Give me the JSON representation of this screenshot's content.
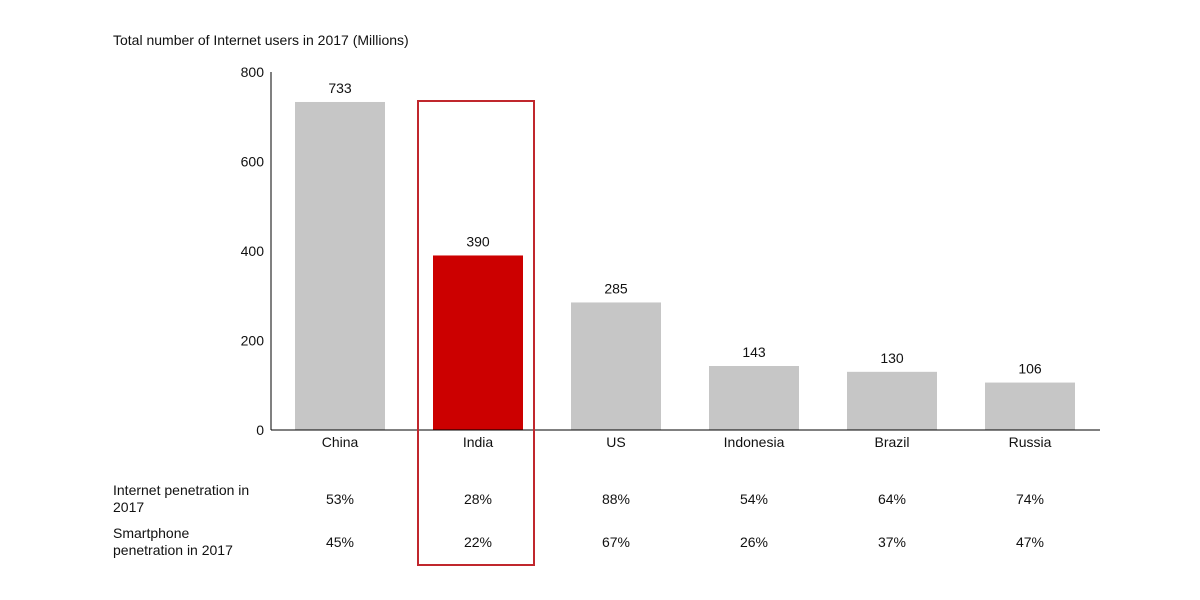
{
  "chart_data": {
    "type": "bar",
    "title": "Total number of Internet users in 2017 (Millions)",
    "categories": [
      "China",
      "India",
      "US",
      "Indonesia",
      "Brazil",
      "Russia"
    ],
    "values": [
      733,
      390,
      285,
      143,
      130,
      106
    ],
    "value_labels": [
      "733",
      "390",
      "285",
      "143",
      "130",
      "106"
    ],
    "ylim": [
      0,
      800
    ],
    "yticks": [
      0,
      200,
      400,
      600,
      800
    ],
    "ytick_labels": [
      "0",
      "200",
      "400",
      "600",
      "800"
    ],
    "grid": false,
    "highlight_category": "India",
    "colors": {
      "default": "#c6c6c6",
      "highlight": "#cc0000",
      "outline": "#c0272d",
      "axis": "#000000"
    },
    "table": {
      "rows": [
        {
          "label_lines": [
            "Internet penetration in",
            "2017"
          ],
          "values": [
            "53%",
            "28%",
            "88%",
            "54%",
            "64%",
            "74%"
          ]
        },
        {
          "label_lines": [
            "Smartphone",
            "penetration in 2017"
          ],
          "values": [
            "45%",
            "22%",
            "67%",
            "26%",
            "37%",
            "47%"
          ]
        }
      ]
    }
  }
}
